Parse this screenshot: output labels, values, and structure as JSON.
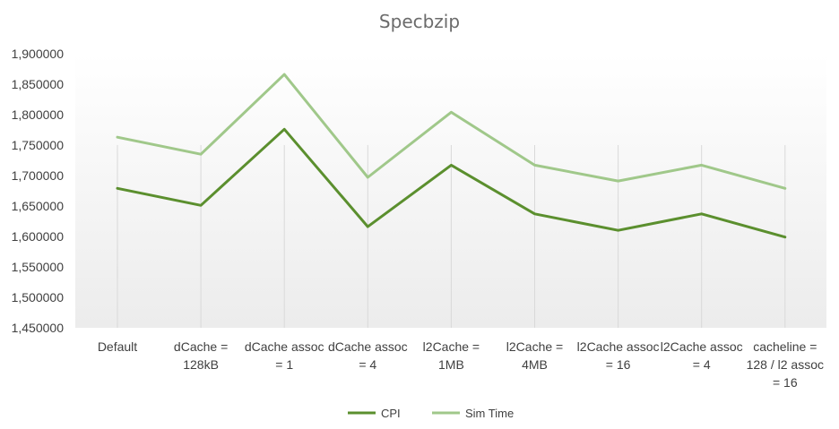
{
  "chart_data": {
    "type": "line",
    "title": "Specbzip",
    "xlabel": "",
    "ylabel": "",
    "categories": [
      [
        "Default"
      ],
      [
        "dCache =",
        "128kB"
      ],
      [
        "dCache assoc",
        "= 1"
      ],
      [
        "dCache assoc",
        "= 4"
      ],
      [
        "l2Cache =",
        "1MB"
      ],
      [
        "l2Cache =",
        "4MB"
      ],
      [
        "l2Cache assoc",
        "= 16"
      ],
      [
        "l2Cache assoc",
        "= 4"
      ],
      [
        "cacheline =",
        "128 / l2 assoc",
        "= 16"
      ]
    ],
    "ylim": [
      1.45,
      1.9
    ],
    "yticks": [
      1.45,
      1.5,
      1.55,
      1.6,
      1.65,
      1.7,
      1.75,
      1.8,
      1.85,
      1.9
    ],
    "ytick_labels": [
      "1,450000",
      "1,500000",
      "1,550000",
      "1,600000",
      "1,650000",
      "1,700000",
      "1,750000",
      "1,800000",
      "1,850000",
      "1,900000"
    ],
    "grid": "vertical lines at categories",
    "legend_position": "bottom",
    "series": [
      {
        "name": "CPI",
        "color": "#5b8f2e",
        "values": [
          1.679,
          1.651,
          1.776,
          1.616,
          1.717,
          1.637,
          1.61,
          1.637,
          1.599
        ]
      },
      {
        "name": "Sim Time",
        "color": "#a0c88a",
        "values": [
          1.763,
          1.735,
          1.866,
          1.697,
          1.804,
          1.717,
          1.691,
          1.717,
          1.679
        ]
      }
    ]
  }
}
